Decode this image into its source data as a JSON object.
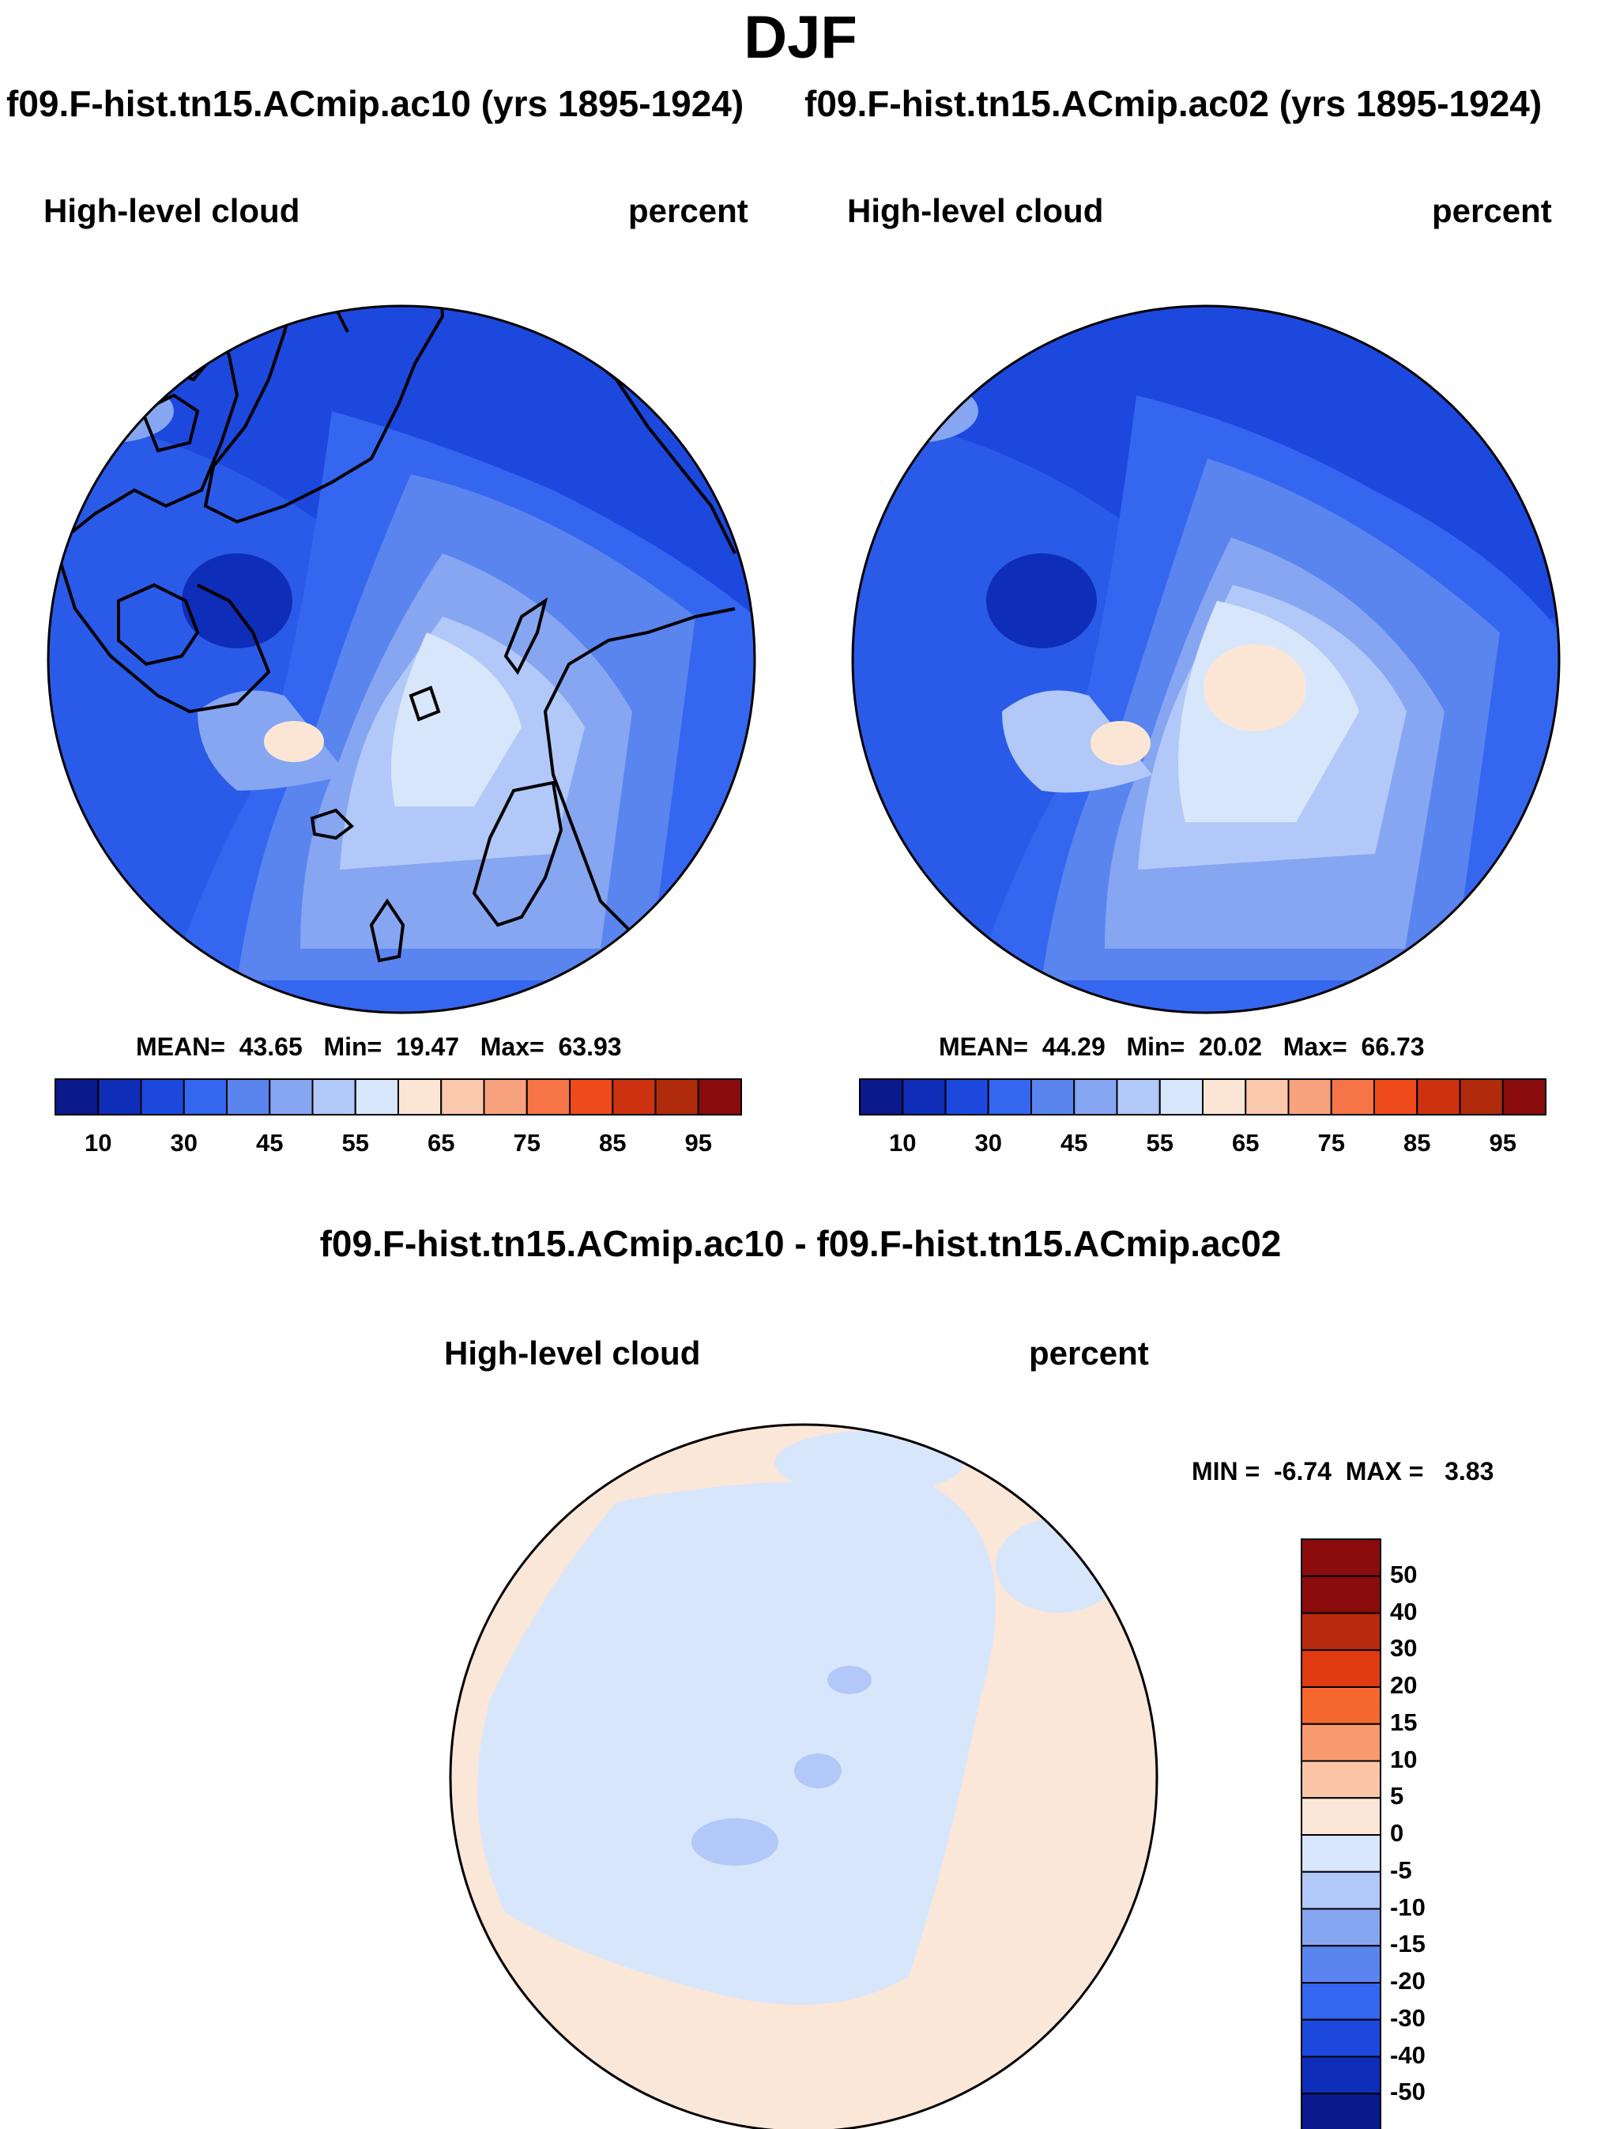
{
  "figure": {
    "title": "DJF",
    "diff_title": "f09.F-hist.tn15.ACmip.ac10 - f09.F-hist.tn15.ACmip.ac02"
  },
  "panels": [
    {
      "run_title": "f09.F-hist.tn15.ACmip.ac10 (yrs 1895-1924)",
      "variable": "High-level cloud",
      "units": "percent",
      "stats": {
        "mean_label": "MEAN=",
        "mean": "43.65",
        "min_label": "Min=",
        "min": "19.47",
        "max_label": "Max=",
        "max": "63.93"
      }
    },
    {
      "run_title": "f09.F-hist.tn15.ACmip.ac02 (yrs 1895-1924)",
      "variable": "High-level cloud",
      "units": "percent",
      "stats": {
        "mean_label": "MEAN=",
        "mean": "44.29",
        "min_label": "Min=",
        "min": "20.02",
        "max_label": "Max=",
        "max": "66.73"
      }
    },
    {
      "variable": "High-level cloud",
      "units": "percent",
      "stats": {
        "min_label": "MIN =",
        "min": "-6.74",
        "max_label": "MAX =",
        "max": "3.83"
      }
    }
  ],
  "colorbar_abs": {
    "tick_labels": [
      "10",
      "30",
      "45",
      "55",
      "65",
      "75",
      "85",
      "95"
    ],
    "colors": [
      "#0a1a8c",
      "#0e2db8",
      "#1c48de",
      "#3466f0",
      "#5a84ee",
      "#86a6f2",
      "#b2c8f8",
      "#d8e6fb",
      "#fbe6d6",
      "#fbc8ae",
      "#f8a27e",
      "#f67446",
      "#ee4a1c",
      "#cc3210",
      "#b02a0c",
      "#8a0c0c"
    ]
  },
  "colorbar_diff": {
    "tick_labels": [
      "50",
      "40",
      "30",
      "20",
      "15",
      "10",
      "5",
      "0",
      "-5",
      "-10",
      "-15",
      "-20",
      "-30",
      "-40",
      "-50"
    ],
    "colors": [
      "#8a0c0c",
      "#b82a0e",
      "#e03a10",
      "#f4682e",
      "#f89a70",
      "#fbc6a8",
      "#fbe7d8",
      "#d8e6fb",
      "#b2c8f8",
      "#86a6f2",
      "#5a84ee",
      "#3466f0",
      "#1c48de",
      "#0e2db8",
      "#0a1a8c"
    ]
  },
  "map_colors": {
    "c20": "#1c48de",
    "c25": "#2a5ae8",
    "c35": "#3466f0",
    "c45": "#5a84ee",
    "c50": "#86a6f2",
    "c55": "#b2c8f8",
    "c60": "#d8e6fb",
    "c65": "#fbe6d6",
    "neg5": "#d8e6fb",
    "pos5": "#fbe7d8",
    "neg10": "#b2c8f8",
    "coast": "#000000"
  }
}
